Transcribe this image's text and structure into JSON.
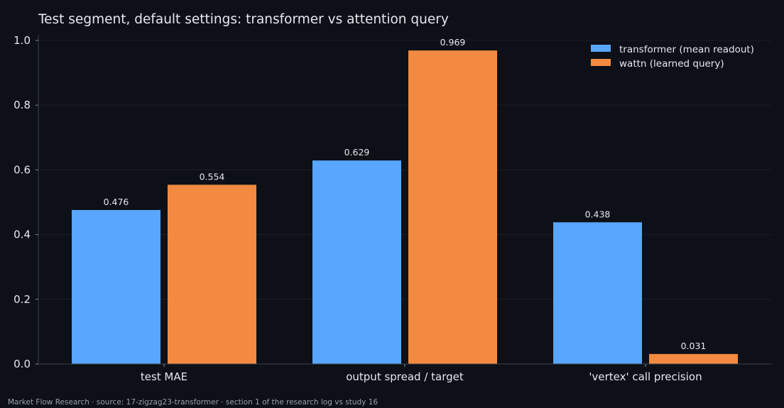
{
  "chart_data": {
    "type": "bar",
    "title": "Test segment, default settings: transformer vs attention query",
    "categories": [
      "test MAE",
      "output spread / target",
      "'vertex' call precision"
    ],
    "series": [
      {
        "name": "transformer (mean readout)",
        "color": "#58a6ff",
        "values": [
          0.476,
          0.629,
          0.438
        ]
      },
      {
        "name": "wattn (learned query)",
        "color": "#f28b41",
        "values": [
          0.554,
          0.969,
          0.031
        ]
      }
    ],
    "ylim": [
      0,
      1.0
    ],
    "yticks": [
      "0.0",
      "0.2",
      "0.4",
      "0.6",
      "0.8",
      "1.0"
    ],
    "grid": true,
    "legend_position": "top-right"
  },
  "footer": "Market Flow Research · source: 17-zigzag23-transformer · section 1 of the research log vs study 16"
}
